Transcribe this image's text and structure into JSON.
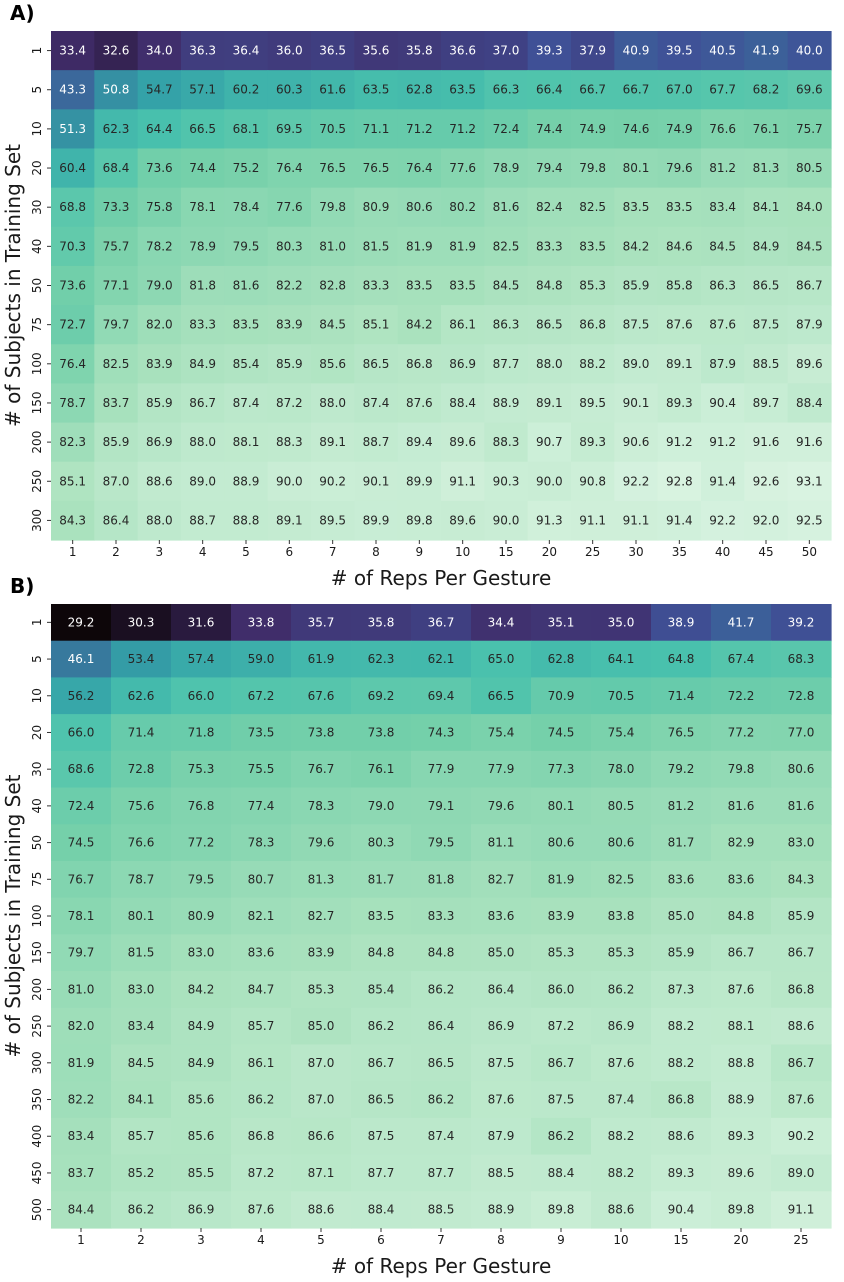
{
  "chart_data": [
    {
      "type": "heatmap",
      "panel_label": "A)",
      "xlabel": "# of Reps Per Gesture",
      "ylabel": "# of Subjects in Training Set",
      "x_categories": [
        "1",
        "2",
        "3",
        "4",
        "5",
        "6",
        "7",
        "8",
        "9",
        "10",
        "15",
        "20",
        "25",
        "30",
        "35",
        "40",
        "45",
        "50"
      ],
      "y_categories": [
        "1",
        "5",
        "10",
        "20",
        "30",
        "40",
        "50",
        "75",
        "100",
        "150",
        "200",
        "250",
        "300"
      ],
      "colormap": "mako_r",
      "color_range": [
        29,
        94
      ],
      "values": [
        [
          33.4,
          32.6,
          34.0,
          36.3,
          36.4,
          36.0,
          36.5,
          35.6,
          35.8,
          36.6,
          37.0,
          39.3,
          37.9,
          40.9,
          39.5,
          40.5,
          41.9,
          40.0
        ],
        [
          43.3,
          50.8,
          54.7,
          57.1,
          60.2,
          60.3,
          61.6,
          63.5,
          62.8,
          63.5,
          66.3,
          66.4,
          66.7,
          66.7,
          67.0,
          67.7,
          68.2,
          69.6
        ],
        [
          51.3,
          62.3,
          64.4,
          66.5,
          68.1,
          69.5,
          70.5,
          71.1,
          71.2,
          71.2,
          72.4,
          74.4,
          74.9,
          74.6,
          74.9,
          76.6,
          76.1,
          75.7
        ],
        [
          60.4,
          68.4,
          73.6,
          74.4,
          75.2,
          76.4,
          76.5,
          76.5,
          76.4,
          77.6,
          78.9,
          79.4,
          79.8,
          80.1,
          79.6,
          81.2,
          81.3,
          80.5
        ],
        [
          68.8,
          73.3,
          75.8,
          78.1,
          78.4,
          77.6,
          79.8,
          80.9,
          80.6,
          80.2,
          81.6,
          82.4,
          82.5,
          83.5,
          83.5,
          83.4,
          84.1,
          84.0
        ],
        [
          70.3,
          75.7,
          78.2,
          78.9,
          79.5,
          80.3,
          81.0,
          81.5,
          81.9,
          81.9,
          82.5,
          83.3,
          83.5,
          84.2,
          84.6,
          84.5,
          84.9,
          84.5
        ],
        [
          73.6,
          77.1,
          79.0,
          81.8,
          81.6,
          82.2,
          82.8,
          83.3,
          83.5,
          83.5,
          84.5,
          84.8,
          85.3,
          85.9,
          85.8,
          86.3,
          86.5,
          86.7
        ],
        [
          72.7,
          79.7,
          82.0,
          83.3,
          83.5,
          83.9,
          84.5,
          85.1,
          84.2,
          86.1,
          86.3,
          86.5,
          86.8,
          87.5,
          87.6,
          87.6,
          87.5,
          87.9
        ],
        [
          76.4,
          82.5,
          83.9,
          84.9,
          85.4,
          85.9,
          85.6,
          86.5,
          86.8,
          86.9,
          87.7,
          88.0,
          88.2,
          89.0,
          89.1,
          87.9,
          88.5,
          89.6
        ],
        [
          78.7,
          83.7,
          85.9,
          86.7,
          87.4,
          87.2,
          88.0,
          87.4,
          87.6,
          88.4,
          88.9,
          89.1,
          89.5,
          90.1,
          89.3,
          90.4,
          89.7,
          88.4
        ],
        [
          82.3,
          85.9,
          86.9,
          88.0,
          88.1,
          88.3,
          89.1,
          88.7,
          89.4,
          89.6,
          88.3,
          90.7,
          89.3,
          90.6,
          91.2,
          91.2,
          91.6,
          91.6
        ],
        [
          85.1,
          87.0,
          88.6,
          89.0,
          88.9,
          90.0,
          90.2,
          90.1,
          89.9,
          91.1,
          90.3,
          90.0,
          90.8,
          92.2,
          92.8,
          91.4,
          92.6,
          93.1
        ],
        [
          84.3,
          86.4,
          88.0,
          88.7,
          88.8,
          89.1,
          89.5,
          89.9,
          89.8,
          89.6,
          90.0,
          91.3,
          91.1,
          91.1,
          91.4,
          92.2,
          92.0,
          92.5
        ]
      ]
    },
    {
      "type": "heatmap",
      "panel_label": "B)",
      "xlabel": "# of Reps Per Gesture",
      "ylabel": "# of Subjects in Training Set",
      "x_categories": [
        "1",
        "2",
        "3",
        "4",
        "5",
        "6",
        "7",
        "8",
        "9",
        "10",
        "15",
        "20",
        "25"
      ],
      "y_categories": [
        "1",
        "5",
        "10",
        "20",
        "30",
        "40",
        "50",
        "75",
        "100",
        "150",
        "200",
        "250",
        "300",
        "350",
        "400",
        "450",
        "500"
      ],
      "colormap": "mako_r",
      "color_range": [
        29,
        94
      ],
      "values": [
        [
          29.2,
          30.3,
          31.6,
          33.8,
          35.7,
          35.8,
          36.7,
          34.4,
          35.1,
          35.0,
          38.9,
          41.7,
          39.2
        ],
        [
          46.1,
          53.4,
          57.4,
          59.0,
          61.9,
          62.3,
          62.1,
          65.0,
          62.8,
          64.1,
          64.8,
          67.4,
          68.3
        ],
        [
          56.2,
          62.6,
          66.0,
          67.2,
          67.6,
          69.2,
          69.4,
          66.5,
          70.9,
          70.5,
          71.4,
          72.2,
          72.8
        ],
        [
          66.0,
          71.4,
          71.8,
          73.5,
          73.8,
          73.8,
          74.3,
          75.4,
          74.5,
          75.4,
          76.5,
          77.2,
          77.0
        ],
        [
          68.6,
          72.8,
          75.3,
          75.5,
          76.7,
          76.1,
          77.9,
          77.9,
          77.3,
          78.0,
          79.2,
          79.8,
          80.6
        ],
        [
          72.4,
          75.6,
          76.8,
          77.4,
          78.3,
          79.0,
          79.1,
          79.6,
          80.1,
          80.5,
          81.2,
          81.6,
          81.6
        ],
        [
          74.5,
          76.6,
          77.2,
          78.3,
          79.6,
          80.3,
          79.5,
          81.1,
          80.6,
          80.6,
          81.7,
          82.9,
          83.0
        ],
        [
          76.7,
          78.7,
          79.5,
          80.7,
          81.3,
          81.7,
          81.8,
          82.7,
          81.9,
          82.5,
          83.6,
          83.6,
          84.3
        ],
        [
          78.1,
          80.1,
          80.9,
          82.1,
          82.7,
          83.5,
          83.3,
          83.6,
          83.9,
          83.8,
          85.0,
          84.8,
          85.9
        ],
        [
          79.7,
          81.5,
          83.0,
          83.6,
          83.9,
          84.8,
          84.8,
          85.0,
          85.3,
          85.3,
          85.9,
          86.7,
          86.7
        ],
        [
          81.0,
          83.0,
          84.2,
          84.7,
          85.3,
          85.4,
          86.2,
          86.4,
          86.0,
          86.2,
          87.3,
          87.6,
          86.8
        ],
        [
          82.0,
          83.4,
          84.9,
          85.7,
          85.0,
          86.2,
          86.4,
          86.9,
          87.2,
          86.9,
          88.2,
          88.1,
          88.6
        ],
        [
          81.9,
          84.5,
          84.9,
          86.1,
          87.0,
          86.7,
          86.5,
          87.5,
          86.7,
          87.6,
          88.2,
          88.8,
          86.7
        ],
        [
          82.2,
          84.1,
          85.6,
          86.2,
          87.0,
          86.5,
          86.2,
          87.6,
          87.5,
          87.4,
          86.8,
          88.9,
          87.6
        ],
        [
          83.4,
          85.7,
          85.6,
          86.8,
          86.6,
          87.5,
          87.4,
          87.9,
          86.2,
          88.2,
          88.6,
          89.3,
          90.2
        ],
        [
          83.7,
          85.2,
          85.5,
          87.2,
          87.1,
          87.7,
          87.7,
          88.5,
          88.4,
          88.2,
          89.3,
          89.6,
          89.0
        ],
        [
          84.4,
          86.2,
          86.9,
          87.6,
          88.6,
          88.4,
          88.5,
          88.9,
          89.8,
          88.6,
          90.4,
          89.8,
          91.1
        ]
      ]
    }
  ]
}
